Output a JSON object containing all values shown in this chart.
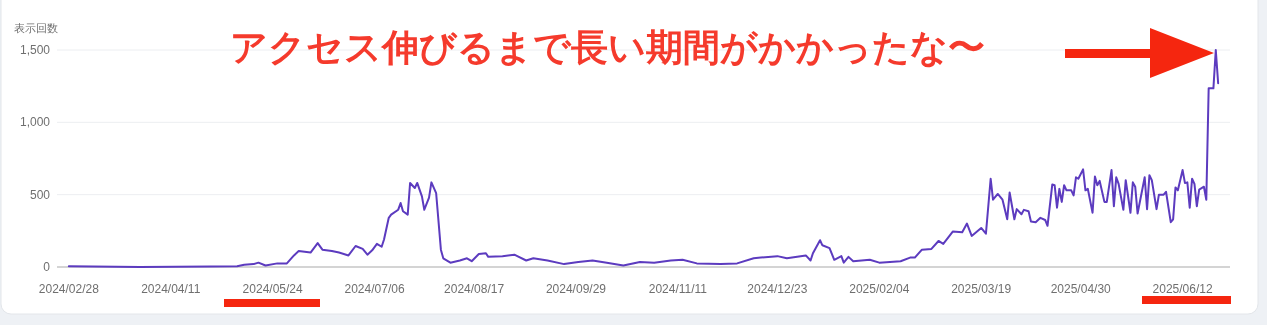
{
  "chart_data": {
    "type": "line",
    "ylabel": "表示回数",
    "annotations": [
      "アクセス伸びるまで長い期間がかかったな〜"
    ],
    "grid": "y",
    "marker": "none",
    "line_style": "solid",
    "xlim": [
      "2024-02-23",
      "2025-07-02"
    ],
    "ylim": [
      0,
      1500
    ],
    "xticks": [
      {
        "value": "2024-02-28",
        "label": "2024/02/28"
      },
      {
        "value": "2024-04-11",
        "label": "2024/04/11"
      },
      {
        "value": "2024-05-24",
        "label": "2024/05/24"
      },
      {
        "value": "2024-07-06",
        "label": "2024/07/06"
      },
      {
        "value": "2024-08-17",
        "label": "2024/08/17"
      },
      {
        "value": "2024-09-29",
        "label": "2024/09/29"
      },
      {
        "value": "2024-11-11",
        "label": "2024/11/11"
      },
      {
        "value": "2024-12-23",
        "label": "2024/12/23"
      },
      {
        "value": "2025-02-04",
        "label": "2025/02/04"
      },
      {
        "value": "2025-03-19",
        "label": "2025/03/19"
      },
      {
        "value": "2025-04-30",
        "label": "2025/04/30"
      },
      {
        "value": "2025-06-12",
        "label": "2025/06/12"
      }
    ],
    "yticks": [
      0,
      500,
      {
        "value": 1000,
        "label": "1,000"
      },
      {
        "value": 1500,
        "label": "1,500"
      }
    ],
    "series": [
      {
        "color": "#5c3bbf",
        "x": [
          "2024-02-28",
          "2024-03-29",
          "2024-04-28",
          "2024-05-09",
          "2024-05-12",
          "2024-05-16",
          "2024-05-18",
          "2024-05-21",
          "2024-05-26",
          "2024-05-30",
          "2024-06-02",
          "2024-06-04",
          "2024-06-09",
          "2024-06-12",
          "2024-06-14",
          "2024-06-18",
          "2024-06-21",
          "2024-06-25",
          "2024-06-28",
          "2024-07-01",
          "2024-07-03",
          "2024-07-05",
          "2024-07-07",
          "2024-07-09",
          "2024-07-10",
          "2024-07-12",
          "2024-07-13",
          "2024-07-16",
          "2024-07-17",
          "2024-07-18",
          "2024-07-20",
          "2024-07-21",
          "2024-07-23",
          "2024-07-24",
          "2024-07-26",
          "2024-07-27",
          "2024-07-29",
          "2024-07-30",
          "2024-08-01",
          "2024-08-03",
          "2024-08-04",
          "2024-08-07",
          "2024-08-11",
          "2024-08-14",
          "2024-08-16",
          "2024-08-19",
          "2024-08-22",
          "2024-08-23",
          "2024-08-29",
          "2024-09-03",
          "2024-09-08",
          "2024-09-11",
          "2024-09-17",
          "2024-09-24",
          "2024-09-30",
          "2024-10-06",
          "2024-10-12",
          "2024-10-19",
          "2024-10-26",
          "2024-11-01",
          "2024-11-08",
          "2024-11-13",
          "2024-11-19",
          "2024-11-29",
          "2024-12-06",
          "2024-12-13",
          "2024-12-16",
          "2024-12-23",
          "2024-12-27",
          "2025-01-04",
          "2025-01-06",
          "2025-01-07",
          "2025-01-10",
          "2025-01-11",
          "2025-01-14",
          "2025-01-16",
          "2025-01-19",
          "2025-01-20",
          "2025-01-22",
          "2025-01-24",
          "2025-01-31",
          "2025-02-04",
          "2025-02-13",
          "2025-02-17",
          "2025-02-19",
          "2025-02-22",
          "2025-02-26",
          "2025-03-01",
          "2025-03-03",
          "2025-03-07",
          "2025-03-11",
          "2025-03-13",
          "2025-03-15",
          "2025-03-19",
          "2025-03-21",
          "2025-03-23",
          "2025-03-24",
          "2025-03-26",
          "2025-03-28",
          "2025-03-30",
          "2025-03-31",
          "2025-04-02",
          "2025-04-03",
          "2025-04-05",
          "2025-04-06",
          "2025-04-08",
          "2025-04-09",
          "2025-04-11",
          "2025-04-13",
          "2025-04-15",
          "2025-04-16",
          "2025-04-18",
          "2025-04-19",
          "2025-04-20",
          "2025-04-21",
          "2025-04-22",
          "2025-04-23",
          "2025-04-24",
          "2025-04-26",
          "2025-04-27",
          "2025-04-28",
          "2025-04-29",
          "2025-05-01",
          "2025-05-02",
          "2025-05-03",
          "2025-05-05",
          "2025-05-06",
          "2025-05-07",
          "2025-05-08",
          "2025-05-10",
          "2025-05-11",
          "2025-05-13",
          "2025-05-14",
          "2025-05-15",
          "2025-05-16",
          "2025-05-18",
          "2025-05-19",
          "2025-05-21",
          "2025-05-22",
          "2025-05-23",
          "2025-05-24",
          "2025-05-27",
          "2025-05-28",
          "2025-05-29",
          "2025-05-30",
          "2025-06-01",
          "2025-06-02",
          "2025-06-04",
          "2025-06-05",
          "2025-06-07",
          "2025-06-08",
          "2025-06-09",
          "2025-06-10",
          "2025-06-12",
          "2025-06-13",
          "2025-06-14",
          "2025-06-15",
          "2025-06-16",
          "2025-06-17",
          "2025-06-18",
          "2025-06-19",
          "2025-06-21",
          "2025-06-22",
          "2025-06-23",
          "2025-06-25",
          "2025-06-26",
          "2025-06-27"
        ],
        "values": [
          5,
          0,
          3,
          5,
          15,
          20,
          30,
          10,
          25,
          25,
          80,
          110,
          100,
          165,
          120,
          110,
          100,
          80,
          145,
          125,
          85,
          115,
          160,
          140,
          190,
          340,
          362,
          396,
          442,
          385,
          362,
          581,
          546,
          581,
          488,
          396,
          479,
          585,
          510,
          120,
          60,
          30,
          45,
          60,
          40,
          90,
          95,
          70,
          75,
          85,
          45,
          60,
          45,
          20,
          35,
          45,
          30,
          10,
          35,
          30,
          45,
          50,
          25,
          20,
          25,
          60,
          65,
          75,
          60,
          80,
          45,
          95,
          185,
          150,
          130,
          50,
          75,
          30,
          70,
          40,
          50,
          30,
          40,
          65,
          65,
          120,
          125,
          180,
          160,
          245,
          240,
          300,
          215,
          270,
          230,
          610,
          465,
          505,
          465,
          330,
          515,
          330,
          400,
          365,
          395,
          385,
          315,
          310,
          340,
          325,
          285,
          570,
          565,
          410,
          540,
          450,
          565,
          530,
          530,
          495,
          620,
          610,
          675,
          530,
          540,
          375,
          625,
          565,
          595,
          450,
          450,
          670,
          420,
          620,
          575,
          395,
          600,
          375,
          585,
          555,
          370,
          620,
          400,
          635,
          600,
          400,
          500,
          500,
          520,
          310,
          330,
          550,
          530,
          670,
          580,
          585,
          410,
          610,
          575,
          420,
          535,
          555,
          465,
          1235,
          1235,
          1500,
          1270
        ]
      }
    ]
  }
}
